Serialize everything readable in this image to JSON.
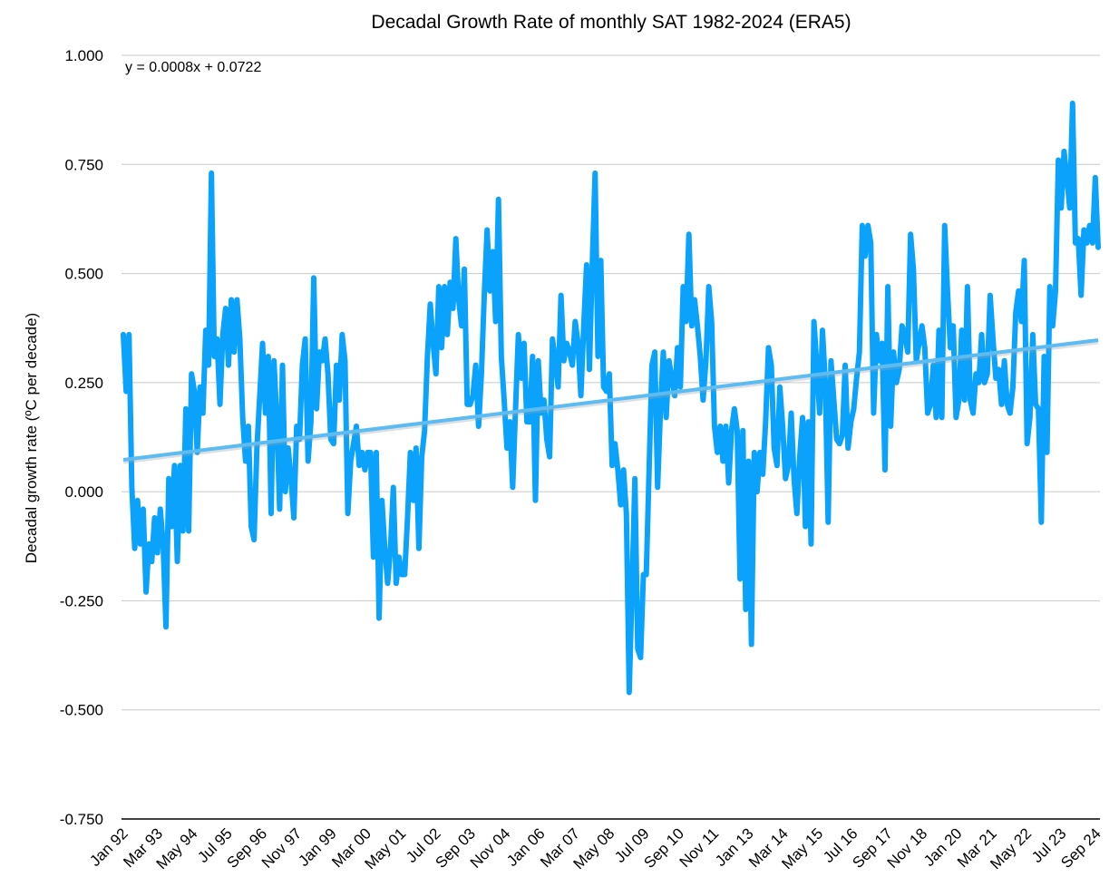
{
  "chart_data": {
    "type": "line",
    "title": "Decadal Growth Rate of monthly SAT 1982-2024 (ERA5)",
    "xlabel": "",
    "ylabel": "Decadal growth rate (ºC per decade)",
    "ylim": [
      -0.75,
      1.0
    ],
    "yticks": [
      "1.000",
      "0.750",
      "0.500",
      "0.250",
      "0.000",
      "-0.250",
      "-0.500",
      "-0.750"
    ],
    "xticks": [
      "Jan 92",
      "Mar 93",
      "May 94",
      "Jul 95",
      "Sep 96",
      "Nov 97",
      "Jan 99",
      "Mar 00",
      "May 01",
      "Jul 02",
      "Sep 03",
      "Nov 04",
      "Jan 06",
      "Mar 07",
      "May 08",
      "Jul 09",
      "Sep 10",
      "Nov 11",
      "Jan 13",
      "Mar 14",
      "May 15",
      "Jul 16",
      "Sep 17",
      "Nov 18",
      "Jan 20",
      "Mar 21",
      "May 22",
      "Jul 23",
      "Sep 24"
    ],
    "grid": true,
    "legend": "none",
    "trendline": {
      "equation": "y = 0.0008x + 0.0722",
      "slope": 0.0008,
      "intercept": 0.0722
    },
    "colors": {
      "series": "#0aa2fb",
      "trend": "#5cbcf2"
    },
    "series": [
      {
        "x_start": "Jan 92",
        "x_end": "Sep 24",
        "values": [
          0.36,
          0.23,
          0.36,
          0.01,
          -0.13,
          -0.02,
          -0.12,
          -0.04,
          -0.23,
          -0.12,
          -0.16,
          -0.06,
          -0.14,
          -0.04,
          -0.12,
          -0.31,
          0.03,
          -0.08,
          0.06,
          -0.16,
          0.06,
          -0.09,
          0.19,
          -0.09,
          0.27,
          0.23,
          0.09,
          0.24,
          0.18,
          0.37,
          0.29,
          0.73,
          0.31,
          0.35,
          0.2,
          0.36,
          0.42,
          0.29,
          0.44,
          0.32,
          0.44,
          0.35,
          0.17,
          0.07,
          0.15,
          -0.08,
          -0.11,
          0.1,
          0.22,
          0.34,
          0.18,
          0.31,
          -0.05,
          0.3,
          0.17,
          -0.04,
          0.29,
          0.0,
          0.1,
          0.03,
          -0.06,
          0.15,
          0.12,
          0.29,
          0.35,
          0.07,
          0.16,
          0.49,
          0.19,
          0.32,
          0.3,
          0.35,
          0.27,
          0.12,
          0.11,
          0.29,
          0.21,
          0.36,
          0.3,
          -0.05,
          0.07,
          0.11,
          0.15,
          0.06,
          0.09,
          0.05,
          0.09,
          0.09,
          -0.15,
          0.09,
          -0.29,
          -0.02,
          -0.13,
          -0.21,
          -0.13,
          0.01,
          -0.21,
          -0.15,
          -0.19,
          -0.19,
          -0.06,
          0.09,
          -0.02,
          0.1,
          -0.13,
          0.08,
          0.14,
          0.31,
          0.43,
          0.34,
          0.27,
          0.47,
          0.33,
          0.47,
          0.36,
          0.48,
          0.42,
          0.58,
          0.44,
          0.38,
          0.51,
          0.2,
          0.2,
          0.22,
          0.29,
          0.15,
          0.27,
          0.45,
          0.6,
          0.46,
          0.55,
          0.39,
          0.67,
          0.31,
          0.21,
          0.1,
          0.16,
          0.01,
          0.19,
          0.36,
          0.26,
          0.34,
          0.16,
          0.16,
          0.31,
          -0.02,
          0.3,
          0.18,
          0.21,
          0.12,
          0.08,
          0.35,
          0.3,
          0.24,
          0.45,
          0.3,
          0.34,
          0.32,
          0.29,
          0.39,
          0.34,
          0.22,
          0.38,
          0.52,
          0.28,
          0.52,
          0.73,
          0.31,
          0.53,
          0.24,
          0.23,
          0.27,
          0.06,
          0.11,
          0.05,
          -0.03,
          0.05,
          -0.05,
          -0.46,
          -0.22,
          0.03,
          -0.36,
          -0.38,
          -0.19,
          -0.19,
          0.05,
          0.29,
          0.32,
          0.01,
          0.19,
          0.32,
          0.17,
          0.3,
          0.26,
          0.22,
          0.33,
          0.24,
          0.47,
          0.39,
          0.59,
          0.38,
          0.44,
          0.38,
          0.31,
          0.21,
          0.3,
          0.47,
          0.39,
          0.15,
          0.09,
          0.15,
          0.07,
          0.15,
          0.02,
          0.14,
          0.19,
          0.14,
          -0.2,
          0.14,
          -0.27,
          0.07,
          -0.35,
          0.09,
          0.0,
          0.09,
          0.04,
          0.16,
          0.33,
          0.29,
          0.1,
          0.06,
          0.24,
          0.15,
          0.03,
          0.06,
          0.18,
          0.03,
          -0.05,
          0.08,
          0.17,
          -0.08,
          0.16,
          -0.12,
          0.39,
          0.29,
          0.18,
          0.37,
          0.25,
          -0.07,
          0.3,
          0.21,
          0.12,
          0.11,
          0.13,
          0.29,
          0.1,
          0.16,
          0.19,
          0.26,
          0.32,
          0.61,
          0.54,
          0.61,
          0.57,
          0.18,
          0.36,
          0.3,
          0.34,
          0.05,
          0.47,
          0.15,
          0.32,
          0.25,
          0.28,
          0.38,
          0.36,
          0.32,
          0.59,
          0.51,
          0.3,
          0.34,
          0.38,
          0.33,
          0.18,
          0.2,
          0.29,
          0.17,
          0.37,
          0.17,
          0.61,
          0.46,
          0.33,
          0.38,
          0.17,
          0.21,
          0.37,
          0.21,
          0.47,
          0.21,
          0.18,
          0.27,
          0.25,
          0.36,
          0.25,
          0.27,
          0.45,
          0.35,
          0.26,
          0.28,
          0.2,
          0.3,
          0.2,
          0.18,
          0.24,
          0.41,
          0.46,
          0.39,
          0.53,
          0.11,
          0.17,
          0.36,
          0.2,
          0.19,
          -0.07,
          0.31,
          0.09,
          0.47,
          0.38,
          0.46,
          0.76,
          0.65,
          0.78,
          0.72,
          0.65,
          0.89,
          0.57,
          0.58,
          0.45,
          0.6,
          0.57,
          0.61,
          0.57,
          0.72,
          0.56
        ]
      }
    ]
  }
}
